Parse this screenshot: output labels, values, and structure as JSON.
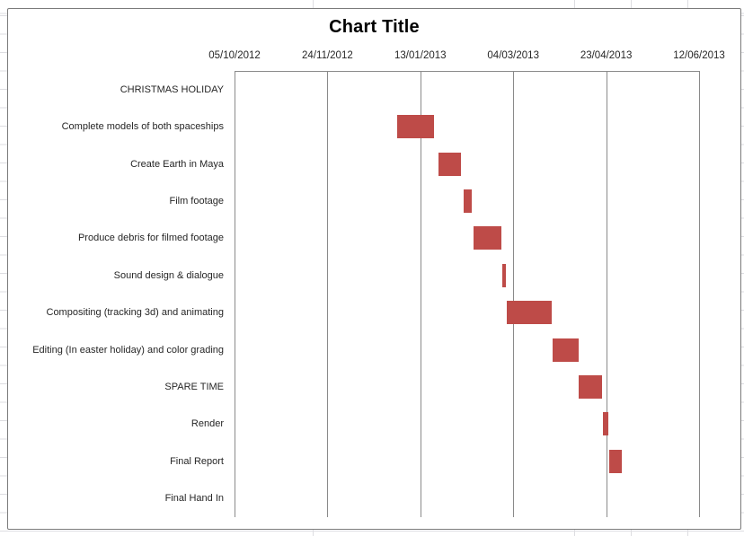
{
  "chart_data": {
    "type": "bar",
    "subtype": "horizontal-floating-gantt",
    "title": "Chart Title",
    "legend": "none",
    "bar_color": "#BE4B48",
    "gridline_color": "#8a8a8a",
    "x_axis": {
      "position": "top",
      "tick_labels": [
        "05/10/2012",
        "24/11/2012",
        "13/01/2013",
        "04/03/2013",
        "23/04/2013",
        "12/06/2013"
      ],
      "min_date": "05/10/2012",
      "max_date": "12/06/2013",
      "major_unit_days": 50,
      "axis_span_days": 250,
      "gridlines": true
    },
    "tasks": [
      {
        "label": "CHRISTMAS HOLIDAY",
        "start_day": null,
        "duration_days": 0,
        "start_date": "",
        "end_date": ""
      },
      {
        "label": "Complete models of both spaceships",
        "start_day": 87.3,
        "duration_days": 20.1,
        "start_date": "31/12/2012",
        "end_date": "20/01/2013"
      },
      {
        "label": "Create Earth in Maya",
        "start_day": 109.8,
        "duration_days": 12.3,
        "start_date": "23/01/2013",
        "end_date": "04/02/2013"
      },
      {
        "label": "Film footage",
        "start_day": 123.3,
        "duration_days": 4.6,
        "start_date": "05/02/2013",
        "end_date": "10/02/2013"
      },
      {
        "label": "Produce debris for filmed footage",
        "start_day": 128.6,
        "duration_days": 15.2,
        "start_date": "11/02/2013",
        "end_date": "26/02/2013"
      },
      {
        "label": "Sound design & dialogue",
        "start_day": 144.3,
        "duration_days": 1.5,
        "start_date": "26/02/2013",
        "end_date": "28/02/2013"
      },
      {
        "label": "Compositing (tracking 3d) and animating",
        "start_day": 146.5,
        "duration_days": 24.4,
        "start_date": "01/03/2013",
        "end_date": "25/03/2013"
      },
      {
        "label": "Editing (In easter holiday) and color grading",
        "start_day": 171.2,
        "duration_days": 13.8,
        "start_date": "25/03/2013",
        "end_date": "08/04/2013"
      },
      {
        "label": "SPARE TIME",
        "start_day": 185.2,
        "duration_days": 12.6,
        "start_date": "08/04/2013",
        "end_date": "21/04/2013"
      },
      {
        "label": "Render",
        "start_day": 198.3,
        "duration_days": 2.7,
        "start_date": "21/04/2013",
        "end_date": "24/04/2013"
      },
      {
        "label": "Final Report",
        "start_day": 201.6,
        "duration_days": 7.0,
        "start_date": "25/04/2013",
        "end_date": "02/05/2013"
      },
      {
        "label": "Final Hand In",
        "start_day": null,
        "duration_days": 0,
        "start_date": "",
        "end_date": ""
      }
    ]
  }
}
